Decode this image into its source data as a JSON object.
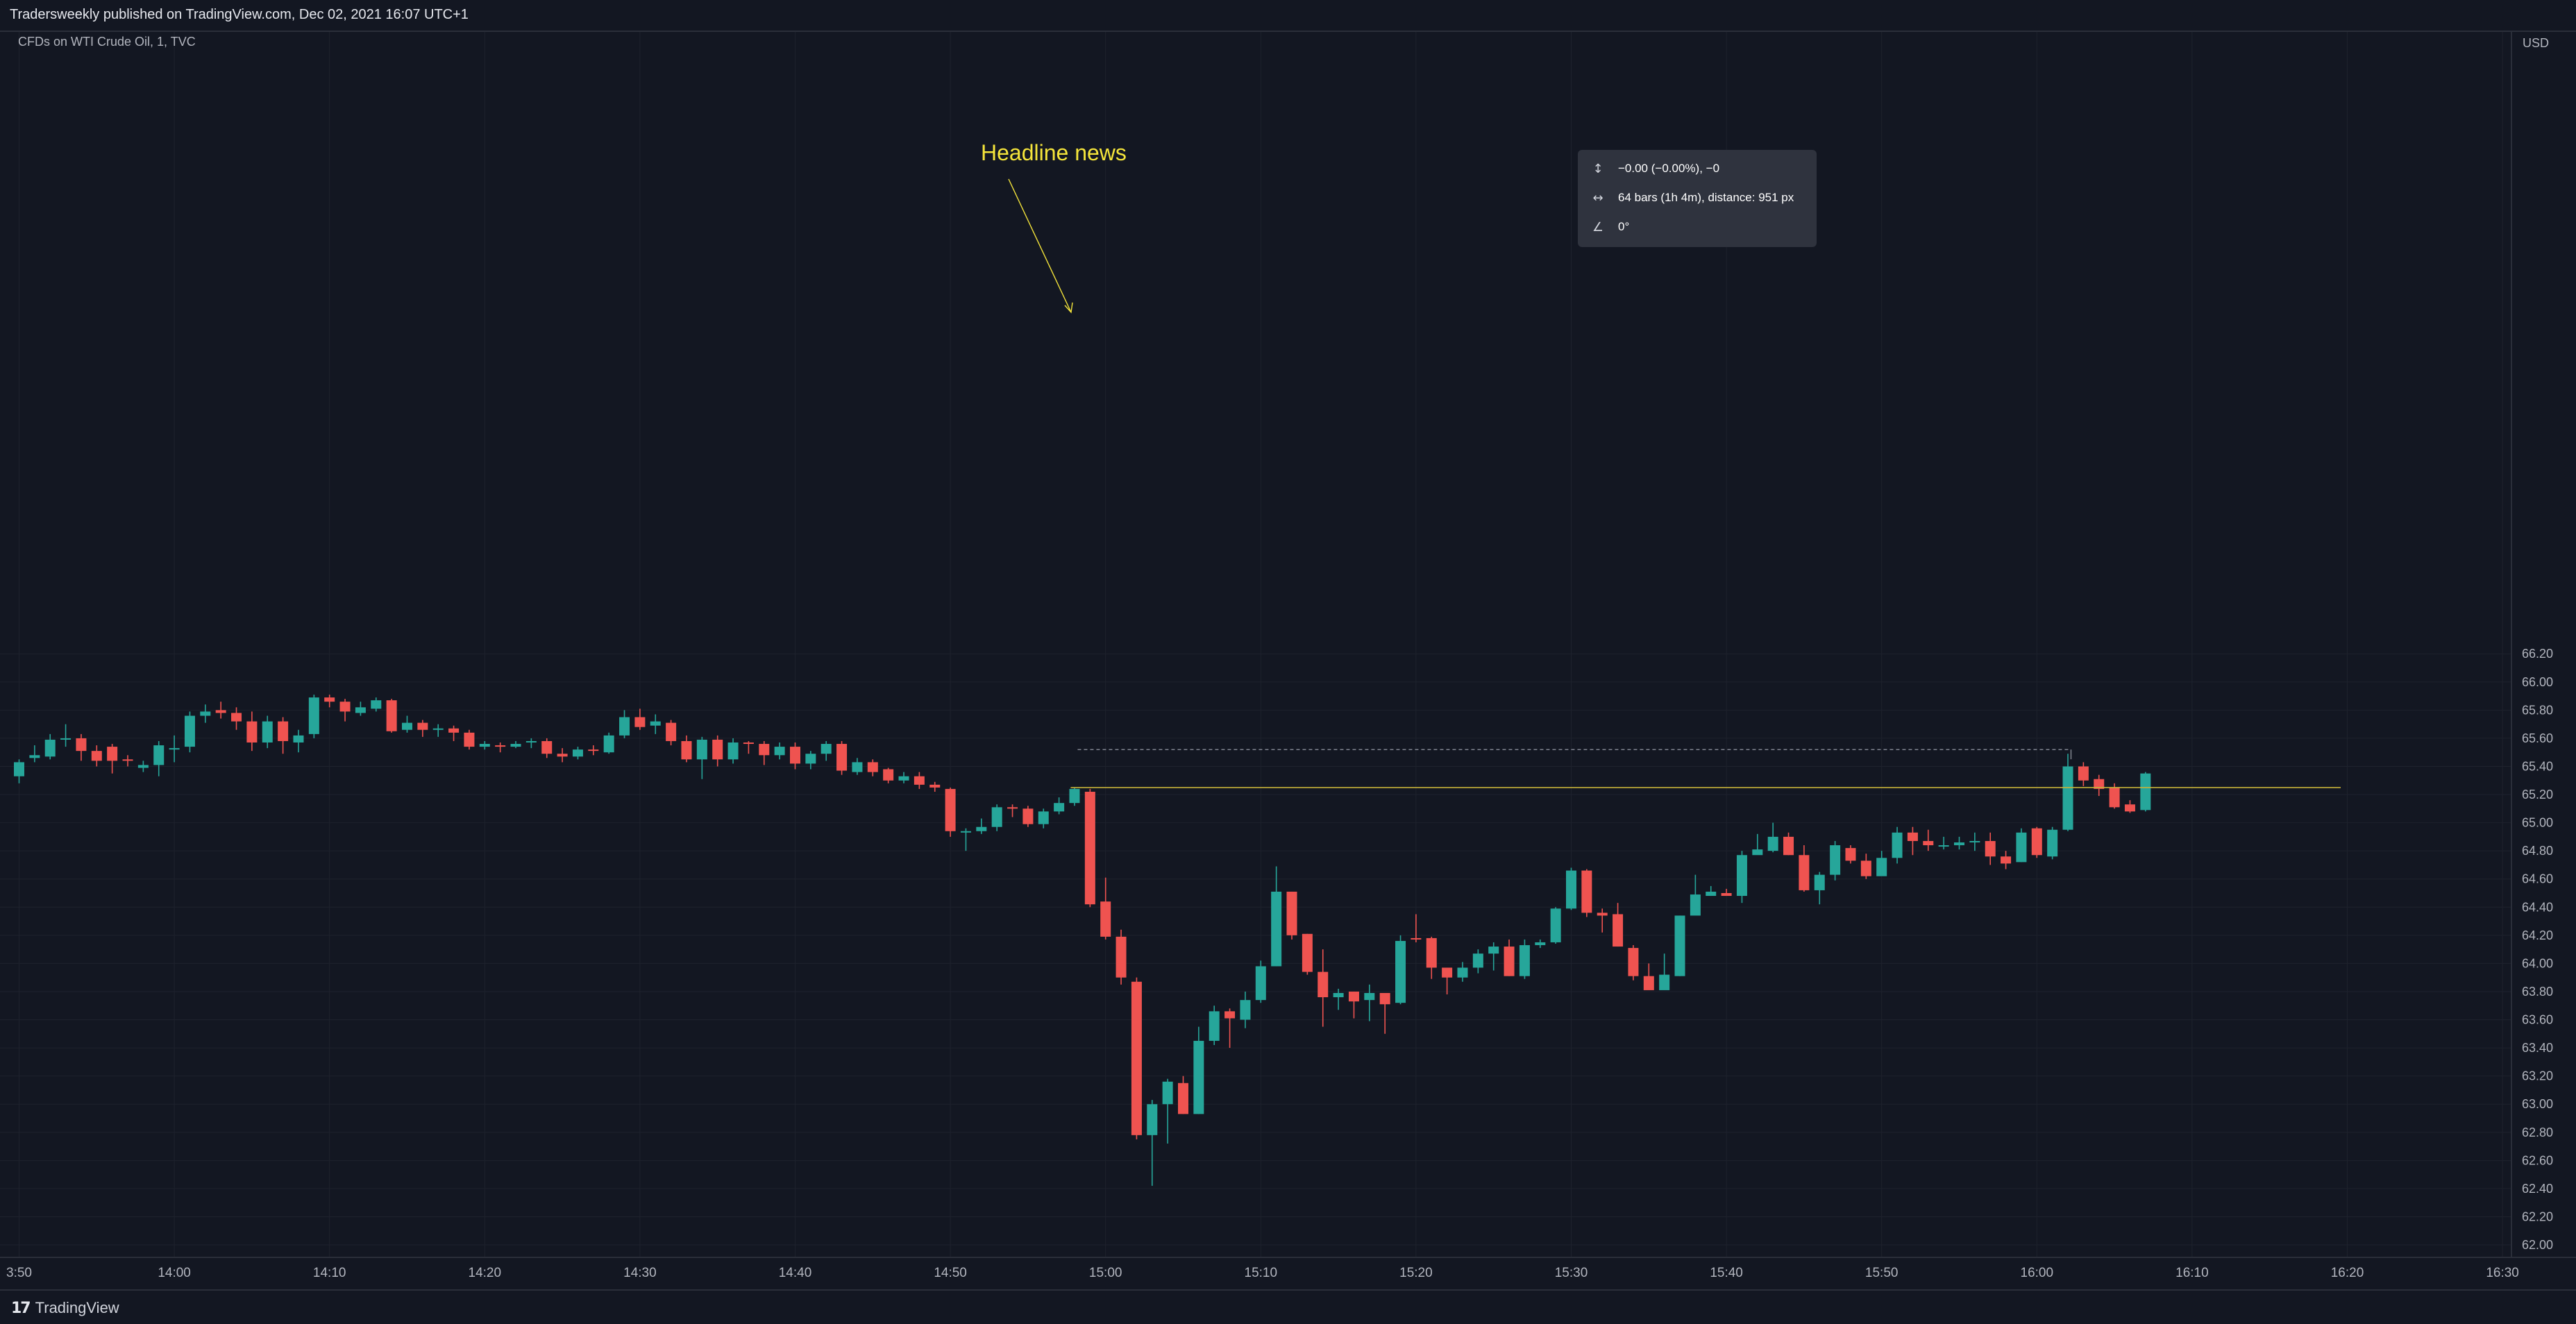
{
  "header": {
    "publisher": "Tradersweekly published on TradingView.com, Dec 02, 2021 16:07 UTC+1"
  },
  "footer": {
    "brand": "TradingView",
    "logo_glyph": "17"
  },
  "legend": {
    "symbol": "CFDs on WTI Crude Oil, 1, TVC"
  },
  "annotation": {
    "text": "Headline news"
  },
  "measure": {
    "price_change": "−0.00 (−0.00%), −0",
    "bars_info": "64 bars (1h 4m), distance: 951 px",
    "angle": "0°",
    "icons": [
      "vertical-range-icon",
      "horizontal-range-icon",
      "angle-icon"
    ]
  },
  "colors": {
    "background": "#131722",
    "up": "#26a69a",
    "down": "#ef5350",
    "grid": "#1e222d",
    "annotation": "#f5e53b",
    "axis_text": "#b2b5be"
  },
  "chart_data": {
    "type": "candlestick",
    "interval": "1m",
    "x_start": "13:50",
    "ylim": [
      62.0,
      66.3
    ],
    "currency": "USD",
    "y_ticks": [
      "62.00",
      "62.20",
      "62.40",
      "62.60",
      "62.80",
      "63.00",
      "63.20",
      "63.40",
      "63.60",
      "63.80",
      "64.00",
      "64.20",
      "64.40",
      "64.60",
      "64.80",
      "65.00",
      "65.20",
      "65.40",
      "65.60",
      "65.80",
      "66.00",
      "66.20"
    ],
    "x_ticks": [
      {
        "label": "3:50",
        "minute": 0
      },
      {
        "label": "14:00",
        "minute": 10
      },
      {
        "label": "14:10",
        "minute": 20
      },
      {
        "label": "14:20",
        "minute": 30
      },
      {
        "label": "14:30",
        "minute": 40
      },
      {
        "label": "14:40",
        "minute": 50
      },
      {
        "label": "14:50",
        "minute": 60
      },
      {
        "label": "15:00",
        "minute": 70
      },
      {
        "label": "15:10",
        "minute": 80
      },
      {
        "label": "15:20",
        "minute": 90
      },
      {
        "label": "15:30",
        "minute": 100
      },
      {
        "label": "15:40",
        "minute": 110
      },
      {
        "label": "15:50",
        "minute": 120
      },
      {
        "label": "16:00",
        "minute": 130
      },
      {
        "label": "16:10",
        "minute": 140
      },
      {
        "label": "16:20",
        "minute": 150
      },
      {
        "label": "16:30",
        "minute": 160
      }
    ],
    "level_line": 65.25,
    "measure_start_minute": 68.2,
    "measure_end_minute": 132.2,
    "measure_top": 65.52,
    "candles": [
      [
        65.33,
        65.43,
        65.28,
        65.45
      ],
      [
        65.46,
        65.48,
        65.43,
        65.55
      ],
      [
        65.47,
        65.59,
        65.45,
        65.63
      ],
      [
        65.59,
        65.6,
        65.54,
        65.7
      ],
      [
        65.6,
        65.51,
        65.44,
        65.63
      ],
      [
        65.51,
        65.44,
        65.4,
        65.55
      ],
      [
        65.54,
        65.44,
        65.35,
        65.56
      ],
      [
        65.45,
        65.44,
        65.4,
        65.48
      ],
      [
        65.39,
        65.41,
        65.36,
        65.44
      ],
      [
        65.41,
        65.55,
        65.33,
        65.58
      ],
      [
        65.52,
        65.53,
        65.43,
        65.62
      ],
      [
        65.54,
        65.76,
        65.5,
        65.79
      ],
      [
        65.76,
        65.79,
        65.71,
        65.84
      ],
      [
        65.8,
        65.78,
        65.74,
        65.86
      ],
      [
        65.78,
        65.72,
        65.66,
        65.82
      ],
      [
        65.72,
        65.57,
        65.51,
        65.79
      ],
      [
        65.57,
        65.72,
        65.53,
        65.76
      ],
      [
        65.72,
        65.58,
        65.49,
        65.75
      ],
      [
        65.57,
        65.62,
        65.5,
        65.66
      ],
      [
        65.63,
        65.89,
        65.6,
        65.91
      ],
      [
        65.89,
        65.86,
        65.82,
        65.91
      ],
      [
        65.86,
        65.79,
        65.72,
        65.88
      ],
      [
        65.78,
        65.82,
        65.76,
        65.86
      ],
      [
        65.81,
        65.87,
        65.79,
        65.89
      ],
      [
        65.87,
        65.65,
        65.64,
        65.88
      ],
      [
        65.66,
        65.71,
        65.64,
        65.76
      ],
      [
        65.71,
        65.66,
        65.61,
        65.73
      ],
      [
        65.66,
        65.67,
        65.61,
        65.7
      ],
      [
        65.67,
        65.64,
        65.58,
        65.69
      ],
      [
        65.64,
        65.54,
        65.52,
        65.66
      ],
      [
        65.54,
        65.56,
        65.52,
        65.58
      ],
      [
        65.55,
        65.54,
        65.5,
        65.57
      ],
      [
        65.54,
        65.56,
        65.53,
        65.58
      ],
      [
        65.57,
        65.58,
        65.53,
        65.6
      ],
      [
        65.58,
        65.49,
        65.46,
        65.6
      ],
      [
        65.49,
        65.47,
        65.43,
        65.53
      ],
      [
        65.47,
        65.52,
        65.45,
        65.54
      ],
      [
        65.52,
        65.51,
        65.48,
        65.55
      ],
      [
        65.5,
        65.62,
        65.49,
        65.64
      ],
      [
        65.62,
        65.75,
        65.6,
        65.8
      ],
      [
        65.75,
        65.68,
        65.66,
        65.81
      ],
      [
        65.69,
        65.72,
        65.63,
        65.77
      ],
      [
        65.71,
        65.58,
        65.55,
        65.73
      ],
      [
        65.58,
        65.45,
        65.43,
        65.62
      ],
      [
        65.45,
        65.59,
        65.31,
        65.61
      ],
      [
        65.59,
        65.45,
        65.4,
        65.62
      ],
      [
        65.45,
        65.57,
        65.42,
        65.6
      ],
      [
        65.57,
        65.56,
        65.49,
        65.58
      ],
      [
        65.56,
        65.48,
        65.41,
        65.58
      ],
      [
        65.48,
        65.54,
        65.45,
        65.57
      ],
      [
        65.54,
        65.42,
        65.38,
        65.57
      ],
      [
        65.42,
        65.49,
        65.38,
        65.51
      ],
      [
        65.49,
        65.56,
        65.44,
        65.58
      ],
      [
        65.56,
        65.37,
        65.34,
        65.58
      ],
      [
        65.36,
        65.43,
        65.34,
        65.46
      ],
      [
        65.43,
        65.36,
        65.33,
        65.45
      ],
      [
        65.38,
        65.3,
        65.28,
        65.39
      ],
      [
        65.3,
        65.33,
        65.28,
        65.36
      ],
      [
        65.33,
        65.27,
        65.24,
        65.36
      ],
      [
        65.27,
        65.25,
        65.22,
        65.29
      ],
      [
        65.24,
        64.94,
        64.9,
        65.25
      ],
      [
        64.94,
        64.94,
        64.8,
        64.96
      ],
      [
        64.94,
        64.97,
        64.92,
        65.03
      ],
      [
        64.97,
        65.11,
        64.94,
        65.13
      ],
      [
        65.11,
        65.1,
        65.04,
        65.13
      ],
      [
        65.1,
        64.99,
        64.97,
        65.12
      ],
      [
        64.99,
        65.08,
        64.96,
        65.1
      ],
      [
        65.08,
        65.14,
        65.06,
        65.18
      ],
      [
        65.14,
        65.24,
        65.12,
        65.25
      ],
      [
        65.22,
        64.42,
        64.4,
        65.24
      ],
      [
        64.44,
        64.19,
        64.17,
        64.61
      ],
      [
        64.19,
        63.9,
        63.85,
        64.24
      ],
      [
        63.87,
        62.78,
        62.75,
        63.9
      ],
      [
        62.78,
        63.0,
        62.42,
        63.03
      ],
      [
        63.0,
        63.16,
        62.72,
        63.18
      ],
      [
        63.15,
        62.93,
        62.93,
        63.2
      ],
      [
        62.93,
        63.45,
        62.93,
        63.55
      ],
      [
        63.45,
        63.66,
        63.42,
        63.7
      ],
      [
        63.66,
        63.61,
        63.4,
        63.68
      ],
      [
        63.6,
        63.74,
        63.54,
        63.8
      ],
      [
        63.74,
        63.98,
        63.72,
        64.02
      ],
      [
        63.98,
        64.51,
        63.98,
        64.69
      ],
      [
        64.51,
        64.2,
        64.17,
        64.51
      ],
      [
        64.21,
        63.94,
        63.92,
        64.21
      ],
      [
        63.94,
        63.76,
        63.55,
        64.1
      ],
      [
        63.76,
        63.79,
        63.67,
        63.82
      ],
      [
        63.8,
        63.73,
        63.61,
        63.8
      ],
      [
        63.74,
        63.79,
        63.59,
        63.85
      ],
      [
        63.79,
        63.71,
        63.5,
        63.79
      ],
      [
        63.72,
        64.16,
        63.71,
        64.2
      ],
      [
        64.18,
        64.17,
        64.15,
        64.35
      ],
      [
        64.18,
        63.97,
        63.89,
        64.19
      ],
      [
        63.97,
        63.9,
        63.78,
        63.97
      ],
      [
        63.9,
        63.97,
        63.87,
        64.01
      ],
      [
        63.97,
        64.07,
        63.93,
        64.1
      ],
      [
        64.07,
        64.12,
        63.95,
        64.15
      ],
      [
        64.12,
        63.91,
        63.91,
        64.17
      ],
      [
        63.91,
        64.13,
        63.89,
        64.17
      ],
      [
        64.13,
        64.15,
        64.11,
        64.17
      ],
      [
        64.15,
        64.39,
        64.14,
        64.4
      ],
      [
        64.39,
        64.66,
        64.38,
        64.68
      ],
      [
        64.66,
        64.36,
        64.33,
        64.67
      ],
      [
        64.36,
        64.34,
        64.22,
        64.39
      ],
      [
        64.35,
        64.12,
        64.12,
        64.43
      ],
      [
        64.11,
        63.91,
        63.88,
        64.13
      ],
      [
        63.91,
        63.81,
        63.82,
        64.0
      ],
      [
        63.81,
        63.92,
        63.84,
        64.07
      ],
      [
        63.91,
        64.34,
        63.91,
        64.34
      ],
      [
        64.34,
        64.49,
        64.35,
        64.63
      ],
      [
        64.48,
        64.51,
        64.48,
        64.55
      ],
      [
        64.5,
        64.48,
        64.48,
        64.53
      ],
      [
        64.48,
        64.77,
        64.43,
        64.8
      ],
      [
        64.77,
        64.81,
        64.78,
        64.92
      ],
      [
        64.8,
        64.9,
        64.79,
        65.0
      ],
      [
        64.9,
        64.77,
        64.77,
        64.93
      ],
      [
        64.77,
        64.52,
        64.51,
        64.84
      ],
      [
        64.52,
        64.63,
        64.42,
        64.65
      ],
      [
        64.63,
        64.84,
        64.59,
        64.87
      ],
      [
        64.82,
        64.73,
        64.71,
        64.84
      ],
      [
        64.73,
        64.62,
        64.6,
        64.78
      ],
      [
        64.62,
        64.75,
        64.63,
        64.8
      ],
      [
        64.75,
        64.93,
        64.71,
        64.97
      ],
      [
        64.93,
        64.87,
        64.77,
        64.97
      ],
      [
        64.87,
        64.84,
        64.8,
        64.95
      ],
      [
        64.84,
        64.84,
        64.81,
        64.9
      ],
      [
        64.84,
        64.86,
        64.81,
        64.9
      ],
      [
        64.86,
        64.87,
        64.8,
        64.93
      ],
      [
        64.87,
        64.76,
        64.7,
        64.93
      ],
      [
        64.76,
        64.71,
        64.67,
        64.8
      ],
      [
        64.72,
        64.93,
        64.72,
        64.96
      ],
      [
        64.96,
        64.77,
        64.75,
        64.97
      ],
      [
        64.76,
        64.95,
        64.74,
        64.97
      ],
      [
        64.95,
        65.4,
        64.94,
        65.49
      ],
      [
        65.4,
        65.3,
        65.26,
        65.43
      ],
      [
        65.31,
        65.24,
        65.19,
        65.34
      ],
      [
        65.25,
        65.11,
        65.1,
        65.28
      ],
      [
        65.13,
        65.08,
        65.07,
        65.16
      ],
      [
        65.09,
        65.35,
        65.08,
        65.36
      ]
    ]
  }
}
